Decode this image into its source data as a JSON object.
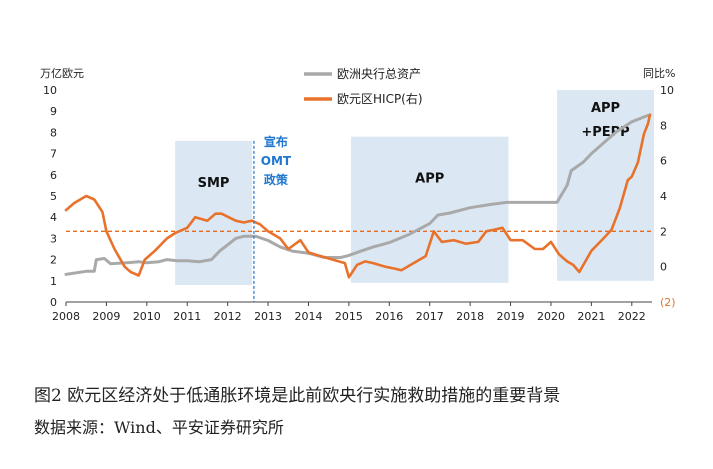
{
  "chart_data": {
    "type": "line",
    "left_axis": {
      "unit_label": "万亿欧元",
      "ylim": [
        0,
        10
      ],
      "ticks": [
        0,
        1,
        2,
        3,
        4,
        5,
        6,
        7,
        8,
        9,
        10
      ]
    },
    "right_axis": {
      "unit_label": "同比%",
      "ylim": [
        -2,
        10
      ],
      "ticks": [
        -2,
        0,
        2,
        4,
        6,
        8,
        10
      ],
      "tick_labels": [
        "(2)",
        "0",
        "2",
        "4",
        "6",
        "8",
        "10"
      ]
    },
    "x_axis": {
      "xlim": [
        2008,
        2022.5
      ],
      "ticks": [
        2008,
        2009,
        2010,
        2011,
        2012,
        2013,
        2014,
        2015,
        2016,
        2017,
        2018,
        2019,
        2020,
        2021,
        2022
      ]
    },
    "reference_line": {
      "axis": "right",
      "value": 2.0,
      "color": "#e86c1f"
    },
    "series": [
      {
        "name": "欧洲央行总资产",
        "axis": "left",
        "color": "#a9a9a9",
        "points": [
          [
            2008.0,
            1.3
          ],
          [
            2008.5,
            1.45
          ],
          [
            2008.7,
            1.45
          ],
          [
            2008.75,
            2.0
          ],
          [
            2008.95,
            2.05
          ],
          [
            2009.1,
            1.8
          ],
          [
            2009.5,
            1.85
          ],
          [
            2009.8,
            1.9
          ],
          [
            2010.0,
            1.85
          ],
          [
            2010.3,
            1.9
          ],
          [
            2010.5,
            2.0
          ],
          [
            2010.75,
            1.95
          ],
          [
            2011.0,
            1.95
          ],
          [
            2011.3,
            1.9
          ],
          [
            2011.6,
            2.0
          ],
          [
            2011.8,
            2.4
          ],
          [
            2012.0,
            2.7
          ],
          [
            2012.2,
            3.0
          ],
          [
            2012.4,
            3.1
          ],
          [
            2012.7,
            3.1
          ],
          [
            2013.0,
            2.9
          ],
          [
            2013.3,
            2.6
          ],
          [
            2013.6,
            2.4
          ],
          [
            2014.0,
            2.3
          ],
          [
            2014.4,
            2.1
          ],
          [
            2014.8,
            2.1
          ],
          [
            2015.0,
            2.2
          ],
          [
            2015.3,
            2.4
          ],
          [
            2015.6,
            2.6
          ],
          [
            2016.0,
            2.8
          ],
          [
            2016.5,
            3.2
          ],
          [
            2017.0,
            3.7
          ],
          [
            2017.2,
            4.1
          ],
          [
            2017.5,
            4.2
          ],
          [
            2018.0,
            4.45
          ],
          [
            2018.5,
            4.6
          ],
          [
            2018.9,
            4.7
          ],
          [
            2019.5,
            4.7
          ],
          [
            2020.0,
            4.7
          ],
          [
            2020.15,
            4.7
          ],
          [
            2020.4,
            5.5
          ],
          [
            2020.5,
            6.2
          ],
          [
            2020.8,
            6.6
          ],
          [
            2021.0,
            7.0
          ],
          [
            2021.3,
            7.5
          ],
          [
            2021.6,
            8.0
          ],
          [
            2022.0,
            8.5
          ],
          [
            2022.4,
            8.8
          ]
        ]
      },
      {
        "name": "欧元区HICP(右)",
        "axis": "right",
        "color": "#e8722c",
        "points": [
          [
            2008.0,
            3.2
          ],
          [
            2008.2,
            3.6
          ],
          [
            2008.5,
            4.0
          ],
          [
            2008.7,
            3.8
          ],
          [
            2008.9,
            3.1
          ],
          [
            2009.0,
            2.0
          ],
          [
            2009.2,
            1.0
          ],
          [
            2009.45,
            0.0
          ],
          [
            2009.6,
            -0.3
          ],
          [
            2009.8,
            -0.5
          ],
          [
            2009.95,
            0.4
          ],
          [
            2010.2,
            0.9
          ],
          [
            2010.5,
            1.6
          ],
          [
            2010.7,
            1.9
          ],
          [
            2011.0,
            2.2
          ],
          [
            2011.2,
            2.8
          ],
          [
            2011.5,
            2.6
          ],
          [
            2011.7,
            3.0
          ],
          [
            2011.85,
            3.0
          ],
          [
            2012.2,
            2.6
          ],
          [
            2012.4,
            2.5
          ],
          [
            2012.6,
            2.6
          ],
          [
            2012.8,
            2.4
          ],
          [
            2013.0,
            2.0
          ],
          [
            2013.3,
            1.6
          ],
          [
            2013.5,
            1.0
          ],
          [
            2013.8,
            1.5
          ],
          [
            2014.0,
            0.8
          ],
          [
            2014.3,
            0.6
          ],
          [
            2014.6,
            0.4
          ],
          [
            2014.9,
            0.2
          ],
          [
            2015.0,
            -0.6
          ],
          [
            2015.2,
            0.1
          ],
          [
            2015.4,
            0.3
          ],
          [
            2015.6,
            0.2
          ],
          [
            2015.9,
            0.0
          ],
          [
            2016.1,
            -0.1
          ],
          [
            2016.3,
            -0.2
          ],
          [
            2016.6,
            0.2
          ],
          [
            2016.9,
            0.6
          ],
          [
            2017.1,
            2.0
          ],
          [
            2017.3,
            1.4
          ],
          [
            2017.6,
            1.5
          ],
          [
            2017.9,
            1.3
          ],
          [
            2018.2,
            1.4
          ],
          [
            2018.4,
            2.0
          ],
          [
            2018.6,
            2.1
          ],
          [
            2018.8,
            2.2
          ],
          [
            2019.0,
            1.5
          ],
          [
            2019.3,
            1.5
          ],
          [
            2019.6,
            1.0
          ],
          [
            2019.8,
            1.0
          ],
          [
            2020.0,
            1.4
          ],
          [
            2020.2,
            0.7
          ],
          [
            2020.4,
            0.3
          ],
          [
            2020.55,
            0.1
          ],
          [
            2020.7,
            -0.3
          ],
          [
            2021.0,
            0.9
          ],
          [
            2021.3,
            1.6
          ],
          [
            2021.5,
            2.1
          ],
          [
            2021.7,
            3.3
          ],
          [
            2021.9,
            4.9
          ],
          [
            2022.0,
            5.1
          ],
          [
            2022.15,
            5.9
          ],
          [
            2022.3,
            7.5
          ],
          [
            2022.4,
            8.1
          ],
          [
            2022.45,
            8.6
          ]
        ]
      }
    ],
    "shaded_regions": [
      {
        "label": "SMP",
        "x_start": 2010.7,
        "x_end": 2012.6,
        "y_start": 0.8,
        "y_end": 7.6
      },
      {
        "label": "APP",
        "x_start": 2015.05,
        "x_end": 2018.95,
        "y_start": 0.9,
        "y_end": 7.8
      },
      {
        "label": "APP\n+PEPP",
        "x_start": 2020.15,
        "x_end": 2022.55,
        "y_start": 1.0,
        "y_end": 10.0
      }
    ],
    "annotation": {
      "x": 2012.65,
      "text": "宣布\nOMT\n政策"
    }
  },
  "legend": {
    "item1": "欧洲央行总资产",
    "item2": "欧元区HICP(右)"
  },
  "caption": {
    "figure_title": "图2 欧元区经济处于低通胀环境是此前欧央行实施救助措施的重要背景",
    "source": "数据来源：Wind、平安证券研究所"
  }
}
